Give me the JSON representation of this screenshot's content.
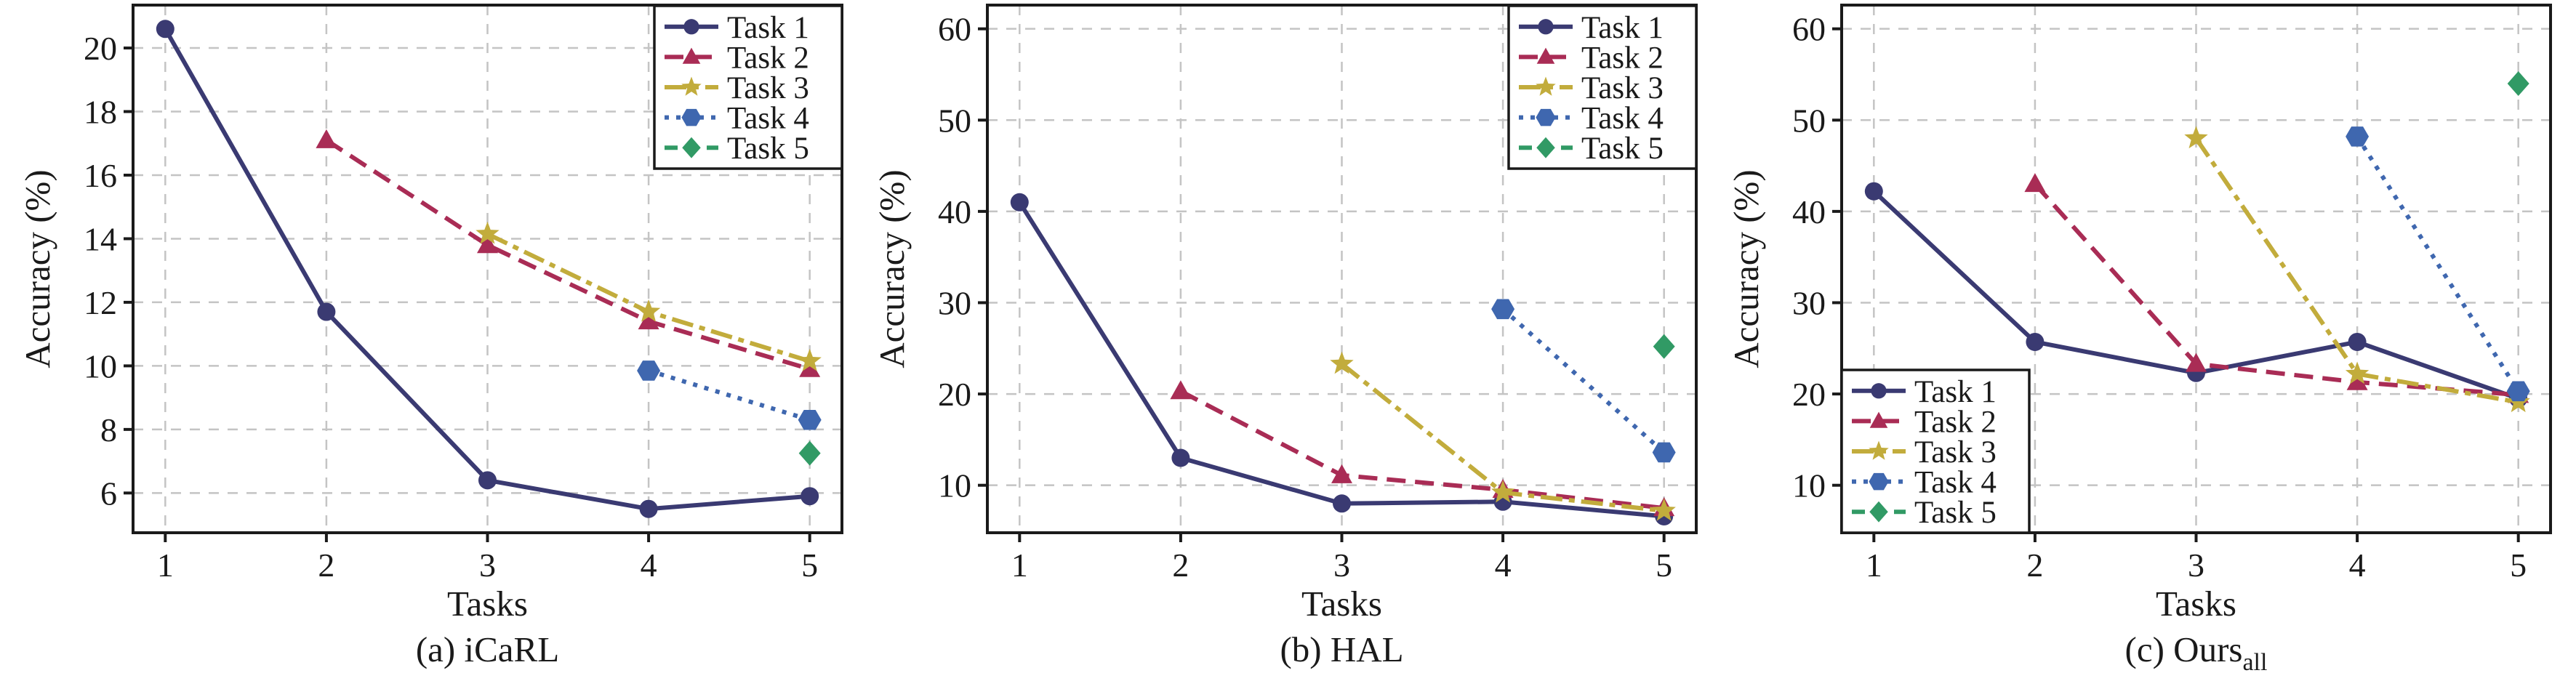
{
  "figure": {
    "background": "#ffffff",
    "text_color": "#1a1a1a",
    "grid_color": "#c4c4c4",
    "spine_color": "#1a1a1a",
    "series_styles": [
      {
        "name": "Task 1",
        "color": "#3A3A72",
        "marker": "circle",
        "dash": "solid"
      },
      {
        "name": "Task 2",
        "color": "#A92C55",
        "marker": "triangle",
        "dash": "dashed"
      },
      {
        "name": "Task 3",
        "color": "#C2AC3C",
        "marker": "star",
        "dash": "dashdot"
      },
      {
        "name": "Task 4",
        "color": "#3F67AF",
        "marker": "hexagon",
        "dash": "dotted"
      },
      {
        "name": "Task 5",
        "color": "#319A65",
        "marker": "diamond",
        "dash": "shortdash"
      }
    ]
  },
  "chart_data": [
    {
      "type": "line",
      "caption": "(a) iCaRL",
      "caption_subscript": "",
      "xlabel": "Tasks",
      "ylabel": "Accuracy (%)",
      "xlim": [
        0.8,
        5.2
      ],
      "ylim": [
        4.75,
        21.35
      ],
      "xticks": [
        1,
        2,
        3,
        4,
        5
      ],
      "yticks": [
        6,
        8,
        10,
        12,
        14,
        16,
        18,
        20
      ],
      "grid": true,
      "plot_left": 183,
      "legend_position": "top-right",
      "legend_entries": [
        "Task 1",
        "Task 2",
        "Task 3",
        "Task 4",
        "Task 5"
      ],
      "series": [
        {
          "name": "Task 1",
          "x": [
            1,
            2,
            3,
            4,
            5
          ],
          "y": [
            20.6,
            11.7,
            6.4,
            5.5,
            5.9
          ]
        },
        {
          "name": "Task 2",
          "x": [
            2,
            3,
            4,
            5
          ],
          "y": [
            17.1,
            13.8,
            11.4,
            9.9
          ]
        },
        {
          "name": "Task 3",
          "x": [
            3,
            4,
            5
          ],
          "y": [
            14.15,
            11.7,
            10.15
          ]
        },
        {
          "name": "Task 4",
          "x": [
            4,
            5
          ],
          "y": [
            9.85,
            8.3
          ]
        },
        {
          "name": "Task 5",
          "x": [
            5
          ],
          "y": [
            7.25
          ]
        }
      ]
    },
    {
      "type": "line",
      "caption": "(b) HAL",
      "caption_subscript": "",
      "xlabel": "Tasks",
      "ylabel": "Accuracy (%)",
      "xlim": [
        0.8,
        5.2
      ],
      "ylim": [
        4.8,
        62.6
      ],
      "xticks": [
        1,
        2,
        3,
        4,
        5
      ],
      "yticks": [
        10,
        20,
        30,
        40,
        50,
        60
      ],
      "grid": true,
      "plot_left": 177,
      "legend_position": "top-right",
      "legend_entries": [
        "Task 1",
        "Task 2",
        "Task 3",
        "Task 4",
        "Task 5"
      ],
      "series": [
        {
          "name": "Task 1",
          "x": [
            1,
            2,
            3,
            4,
            5
          ],
          "y": [
            41.0,
            13.0,
            8.0,
            8.2,
            6.6
          ]
        },
        {
          "name": "Task 2",
          "x": [
            2,
            3,
            4,
            5
          ],
          "y": [
            20.3,
            11.1,
            9.5,
            7.5
          ]
        },
        {
          "name": "Task 3",
          "x": [
            3,
            4,
            5
          ],
          "y": [
            23.3,
            9.2,
            7.2
          ]
        },
        {
          "name": "Task 4",
          "x": [
            4,
            5
          ],
          "y": [
            29.3,
            13.6
          ]
        },
        {
          "name": "Task 5",
          "x": [
            5
          ],
          "y": [
            25.2
          ]
        }
      ]
    },
    {
      "type": "line",
      "caption": "(c) Ours",
      "caption_subscript": "all",
      "xlabel": "Tasks",
      "ylabel": "Accuracy (%)",
      "xlim": [
        0.8,
        5.2
      ],
      "ylim": [
        4.8,
        62.6
      ],
      "xticks": [
        1,
        2,
        3,
        4,
        5
      ],
      "yticks": [
        10,
        20,
        30,
        40,
        50,
        60
      ],
      "grid": true,
      "plot_left": 171,
      "legend_position": "bottom-left",
      "legend_entries": [
        "Task 1",
        "Task 2",
        "Task 3",
        "Task 4",
        "Task 5"
      ],
      "series": [
        {
          "name": "Task 1",
          "x": [
            1,
            2,
            3,
            4,
            5
          ],
          "y": [
            42.2,
            25.7,
            22.3,
            25.7,
            19.5
          ]
        },
        {
          "name": "Task 2",
          "x": [
            2,
            3,
            4,
            5
          ],
          "y": [
            43.0,
            23.3,
            21.3,
            19.9
          ]
        },
        {
          "name": "Task 3",
          "x": [
            3,
            4,
            5
          ],
          "y": [
            48.0,
            22.2,
            19.1
          ]
        },
        {
          "name": "Task 4",
          "x": [
            4,
            5
          ],
          "y": [
            48.2,
            20.3
          ]
        },
        {
          "name": "Task 5",
          "x": [
            5
          ],
          "y": [
            54.0
          ]
        }
      ]
    }
  ]
}
